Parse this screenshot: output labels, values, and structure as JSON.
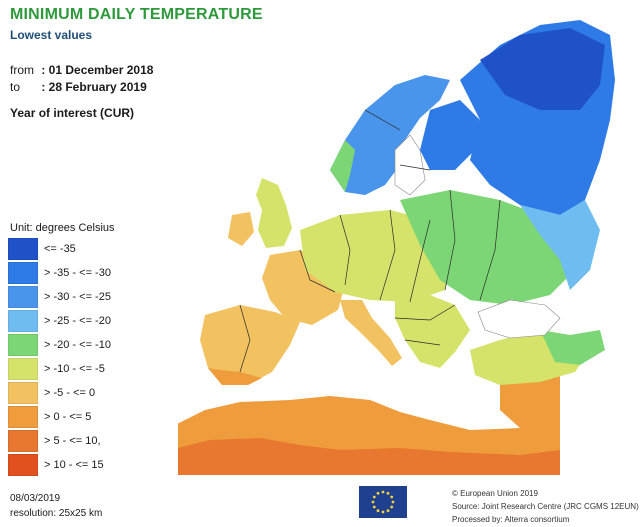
{
  "header": {
    "title": "MINIMUM DAILY TEMPERATURE",
    "subtitle": "Lowest values",
    "from_label": "from",
    "from_value": ": 01 December 2018",
    "to_label": "to",
    "to_value": ": 28 February 2019",
    "year_of_interest": "Year of interest (CUR)"
  },
  "legend": {
    "unit": "Unit: degrees Celsius",
    "items": [
      {
        "label": "<= -35",
        "color": "#1f52c9"
      },
      {
        "label": "> -35 - <= -30",
        "color": "#2e7ae6"
      },
      {
        "label": "> -30 - <= -25",
        "color": "#4a95ec"
      },
      {
        "label": "> -25 - <= -20",
        "color": "#6fbdf0"
      },
      {
        "label": "> -20 - <= -10",
        "color": "#7dd676"
      },
      {
        "label": "> -10 - <= -5",
        "color": "#d6e36a"
      },
      {
        "label": "> -5 - <= 0",
        "color": "#f2c261"
      },
      {
        "label": "> 0 - <= 5",
        "color": "#ef9c3c"
      },
      {
        "label": "> 5 - <= 10,",
        "color": "#e8782f"
      },
      {
        "label": "> 10 - <= 15",
        "color": "#e0511f"
      }
    ]
  },
  "footer": {
    "date": "08/03/2019",
    "resolution": "resolution: 25x25 km",
    "copyright": "© European Union 2019",
    "source": "Source: Joint Research Centre (JRC CGMS 12EUN)",
    "processed_by": "Processed by: Alterra consortium"
  },
  "colors": {
    "sea": "#ffffff",
    "border": "#2a2a2a"
  }
}
